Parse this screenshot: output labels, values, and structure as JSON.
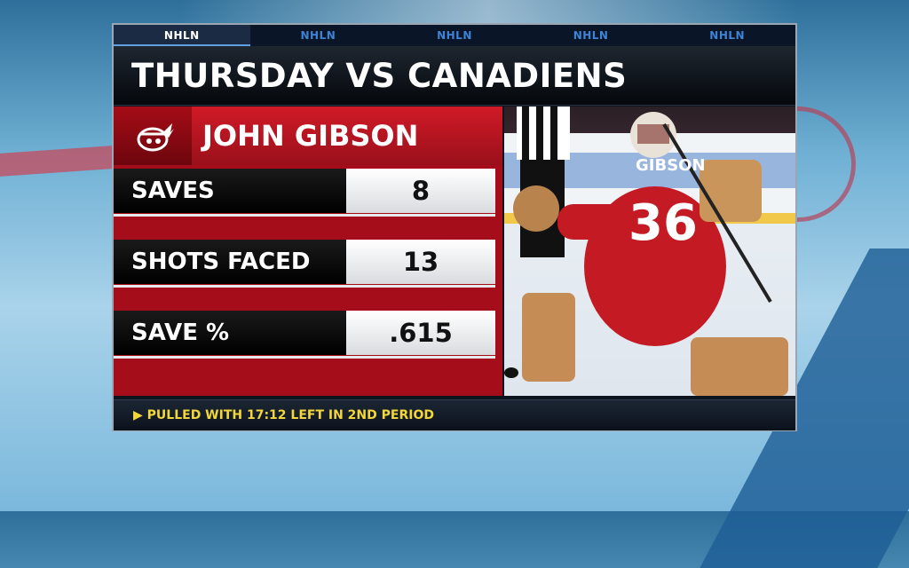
{
  "tabs": [
    "NHLN",
    "NHLN",
    "NHLN",
    "NHLN",
    "NHLN"
  ],
  "header": {
    "title": "THURSDAY VS CANADIENS"
  },
  "player": {
    "name": "JOHN GIBSON",
    "team_logo": "red-wings-logo",
    "jersey_name": "GIBSON",
    "jersey_number": "36"
  },
  "stats": [
    {
      "label": "SAVES",
      "value": "8"
    },
    {
      "label": "SHOTS FACED",
      "value": "13"
    },
    {
      "label": "SAVE %",
      "value": ".615"
    }
  ],
  "footer": {
    "arrow": "▶",
    "note": "PULLED WITH 17:12 LEFT IN 2ND PERIOD"
  },
  "colors": {
    "accent_red": "#c8101e",
    "tab_blue": "#3d83d6",
    "footer_yellow": "#f3d63a"
  }
}
